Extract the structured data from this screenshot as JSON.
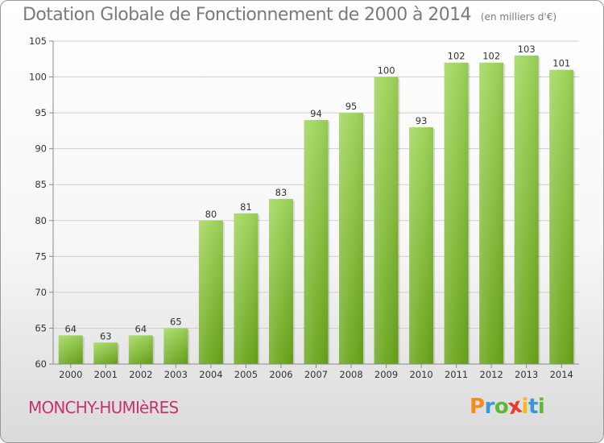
{
  "chart_data": {
    "type": "bar",
    "title": "Dotation Globale de Fonctionnement de 2000 à 2014",
    "subtitle": "(en milliers d'€)",
    "categories": [
      "2000",
      "2001",
      "2002",
      "2003",
      "2004",
      "2005",
      "2006",
      "2007",
      "2008",
      "2009",
      "2010",
      "2011",
      "2012",
      "2013",
      "2014"
    ],
    "values": [
      64,
      63,
      64,
      65,
      80,
      81,
      83,
      94,
      95,
      100,
      93,
      102,
      102,
      103,
      101
    ],
    "ylim": [
      60,
      105
    ],
    "yticks": [
      60,
      65,
      70,
      75,
      80,
      85,
      90,
      95,
      100,
      105
    ],
    "grid": true,
    "bar_color": "#8cc63f"
  },
  "footer": {
    "commune": "MONCHY-HUMIèRES",
    "commune_color": "#c8326e",
    "brand": "Proxiti",
    "brand_colors": [
      "#f28c1e",
      "#3a9ad9",
      "#5fb832",
      "#e63a2a",
      "#f2b81e",
      "#3a9ad9",
      "#5fb832"
    ]
  }
}
